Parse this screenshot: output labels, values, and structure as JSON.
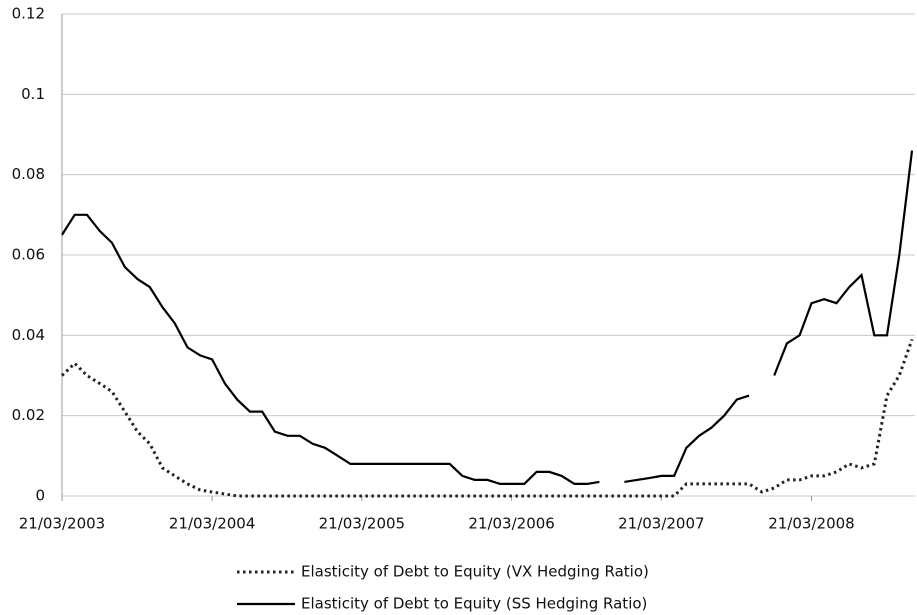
{
  "chart_data": {
    "type": "line",
    "x": [
      "21/03/2003",
      "21/04/2003",
      "21/05/2003",
      "21/06/2003",
      "21/07/2003",
      "21/08/2003",
      "21/09/2003",
      "21/10/2003",
      "21/11/2003",
      "21/12/2003",
      "21/01/2004",
      "21/02/2004",
      "21/03/2004",
      "21/04/2004",
      "21/05/2004",
      "21/06/2004",
      "21/07/2004",
      "21/08/2004",
      "21/09/2004",
      "21/10/2004",
      "21/11/2004",
      "21/12/2004",
      "21/01/2005",
      "21/02/2005",
      "21/03/2005",
      "21/04/2005",
      "21/05/2005",
      "21/06/2005",
      "21/07/2005",
      "21/08/2005",
      "21/09/2005",
      "21/10/2005",
      "21/11/2005",
      "21/12/2005",
      "21/01/2006",
      "21/02/2006",
      "21/03/2006",
      "21/04/2006",
      "21/05/2006",
      "21/06/2006",
      "21/07/2006",
      "21/08/2006",
      "21/09/2006",
      "21/10/2006",
      "21/11/2006",
      "21/12/2006",
      "21/01/2007",
      "21/02/2007",
      "21/03/2007",
      "21/04/2007",
      "21/05/2007",
      "21/06/2007",
      "21/07/2007",
      "21/08/2007",
      "21/09/2007",
      "21/10/2007",
      "21/11/2007",
      "21/12/2007",
      "21/01/2008",
      "21/02/2008",
      "21/03/2008",
      "21/04/2008",
      "21/05/2008",
      "21/06/2008",
      "21/07/2008",
      "21/08/2008",
      "21/09/2008",
      "21/10/2008",
      "21/11/2008"
    ],
    "series": [
      {
        "name": "Elasticity of Debt to Equity (VX Hedging Ratio)",
        "color": "#222222",
        "style": "dotted",
        "values": [
          0.03,
          0.033,
          0.03,
          0.028,
          0.026,
          0.021,
          0.016,
          0.013,
          0.007,
          0.005,
          0.003,
          0.0015,
          0.001,
          0.0005,
          0,
          0,
          0,
          0,
          0,
          0,
          0,
          0,
          0,
          0,
          0,
          0,
          0,
          0,
          0,
          0,
          0,
          0,
          0,
          0,
          0,
          0,
          0,
          0,
          0,
          0,
          0,
          0,
          0,
          0,
          0,
          0,
          0,
          0,
          0,
          0,
          0.003,
          0.003,
          0.003,
          0.003,
          0.003,
          0.003,
          0.001,
          0.002,
          0.004,
          0.004,
          0.005,
          0.005,
          0.006,
          0.008,
          0.007,
          0.008,
          0.025,
          0.03,
          0.039
        ]
      },
      {
        "name": "Elasticity of Debt to Equity (SS Hedging Ratio)",
        "color": "#000000",
        "style": "solid",
        "values": [
          0.065,
          0.07,
          0.07,
          0.066,
          0.063,
          0.057,
          0.054,
          0.052,
          0.047,
          0.043,
          0.037,
          0.035,
          0.034,
          0.028,
          0.024,
          0.021,
          0.021,
          0.016,
          0.015,
          0.015,
          0.013,
          0.012,
          0.01,
          0.008,
          0.008,
          0.008,
          0.008,
          0.008,
          0.008,
          0.008,
          0.008,
          0.008,
          0.005,
          0.004,
          0.004,
          0.003,
          0.003,
          0.003,
          0.006,
          0.006,
          0.005,
          0.003,
          0.003,
          0.0035,
          null,
          0.0035,
          0.004,
          0.0045,
          0.005,
          0.005,
          0.012,
          0.015,
          0.017,
          0.02,
          0.024,
          0.025,
          null,
          0.03,
          0.038,
          0.04,
          0.048,
          0.049,
          0.048,
          0.052,
          0.055,
          0.04,
          0.04,
          0.06,
          0.086
        ]
      }
    ],
    "xticks": [
      "21/03/2003",
      "21/03/2004",
      "21/03/2005",
      "21/03/2006",
      "21/03/2007",
      "21/03/2008"
    ],
    "ylim": [
      0,
      0.12
    ],
    "yticks": [
      0,
      0.02,
      0.04,
      0.06,
      0.08,
      0.1,
      0.12
    ],
    "grid": true,
    "legend": "bottom"
  }
}
